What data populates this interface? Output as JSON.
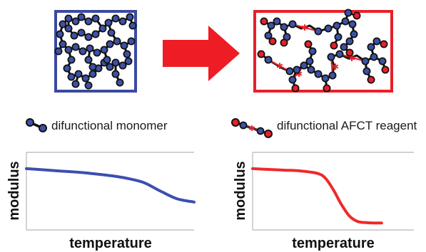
{
  "legend": {
    "monomer_label": "difunctional monomer",
    "afct_label": "difunctional AFCT reagent"
  },
  "colors": {
    "monomer_node": "#3d52a7",
    "afct_node": "#e8202a",
    "frame_left": "#3b4aa0",
    "frame_right": "#e8202a",
    "arrow": "#ee1c24",
    "curve_left": "#3b4fb0",
    "curve_right": "#ee2a2a",
    "axis": "#b8b8b8"
  },
  "arrow_icon": "right-arrow-icon",
  "chart_data": [
    {
      "type": "line",
      "title": "",
      "xlabel": "temperature",
      "ylabel": "modulus",
      "grid": false,
      "xlim": [
        0,
        1
      ],
      "ylim": [
        0,
        1
      ],
      "series": [
        {
          "x": [
            0,
            0.1,
            0.2,
            0.3,
            0.4,
            0.5,
            0.6,
            0.7,
            0.8,
            0.9,
            1.0
          ],
          "y": [
            0.79,
            0.775,
            0.76,
            0.745,
            0.725,
            0.7,
            0.665,
            0.61,
            0.5,
            0.4,
            0.36
          ]
        }
      ]
    },
    {
      "type": "line",
      "title": "",
      "xlabel": "temperature",
      "ylabel": "modulus",
      "grid": false,
      "xlim": [
        0,
        1
      ],
      "ylim": [
        0,
        1
      ],
      "series": [
        {
          "x": [
            0,
            0.1,
            0.2,
            0.3,
            0.4,
            0.45,
            0.5,
            0.55,
            0.6,
            0.65,
            0.7,
            0.75,
            0.8
          ],
          "y": [
            0.79,
            0.78,
            0.77,
            0.76,
            0.73,
            0.67,
            0.52,
            0.33,
            0.18,
            0.11,
            0.095,
            0.09,
            0.09
          ]
        }
      ]
    }
  ]
}
